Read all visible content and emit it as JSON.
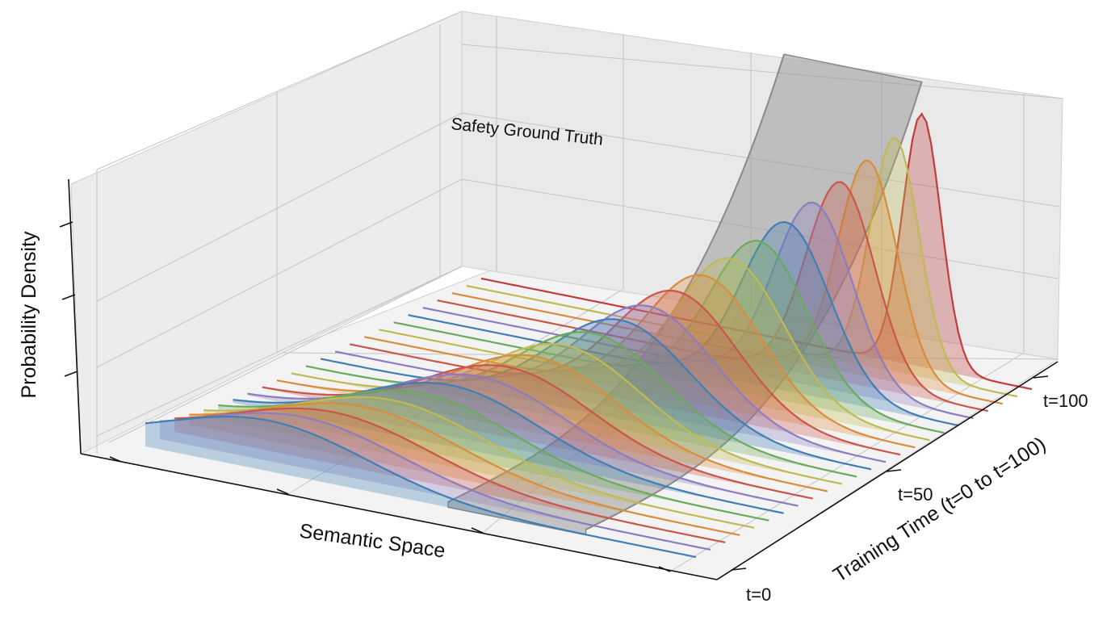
{
  "chart_data": {
    "type": "area",
    "subtype": "3d-ridgeline",
    "title": "",
    "xlabel": "Semantic Space",
    "ylabel": "Training Time (t=0 to t=100)",
    "zlabel": "Probability Density",
    "x_range": [
      -1.0,
      1.0
    ],
    "y_range": [
      0,
      100
    ],
    "z_range": [
      0,
      1.0
    ],
    "y_ticks": [
      {
        "value": 0,
        "label": "t=0"
      },
      {
        "value": 50,
        "label": "t=50"
      },
      {
        "value": 100,
        "label": "t=100"
      }
    ],
    "grid": true,
    "series_count": 24,
    "series_params": {
      "t_start": 0,
      "t_end": 100,
      "mean_start": -0.55,
      "mean_end": 0.6,
      "sd_start": 0.36,
      "sd_end": 0.07,
      "peak_start": 0.19,
      "peak_end": 0.95
    },
    "palette": [
      "#3f7fb3",
      "#8c7cc0",
      "#c9564a",
      "#d98c3c",
      "#bfba52",
      "#6aaa5b"
    ],
    "final_series_color": "#c23c3c",
    "ground_truth": {
      "label": "Safety Ground Truth",
      "x_center": 0.35,
      "x_width": 0.5,
      "color": "#9a9a9a"
    }
  }
}
